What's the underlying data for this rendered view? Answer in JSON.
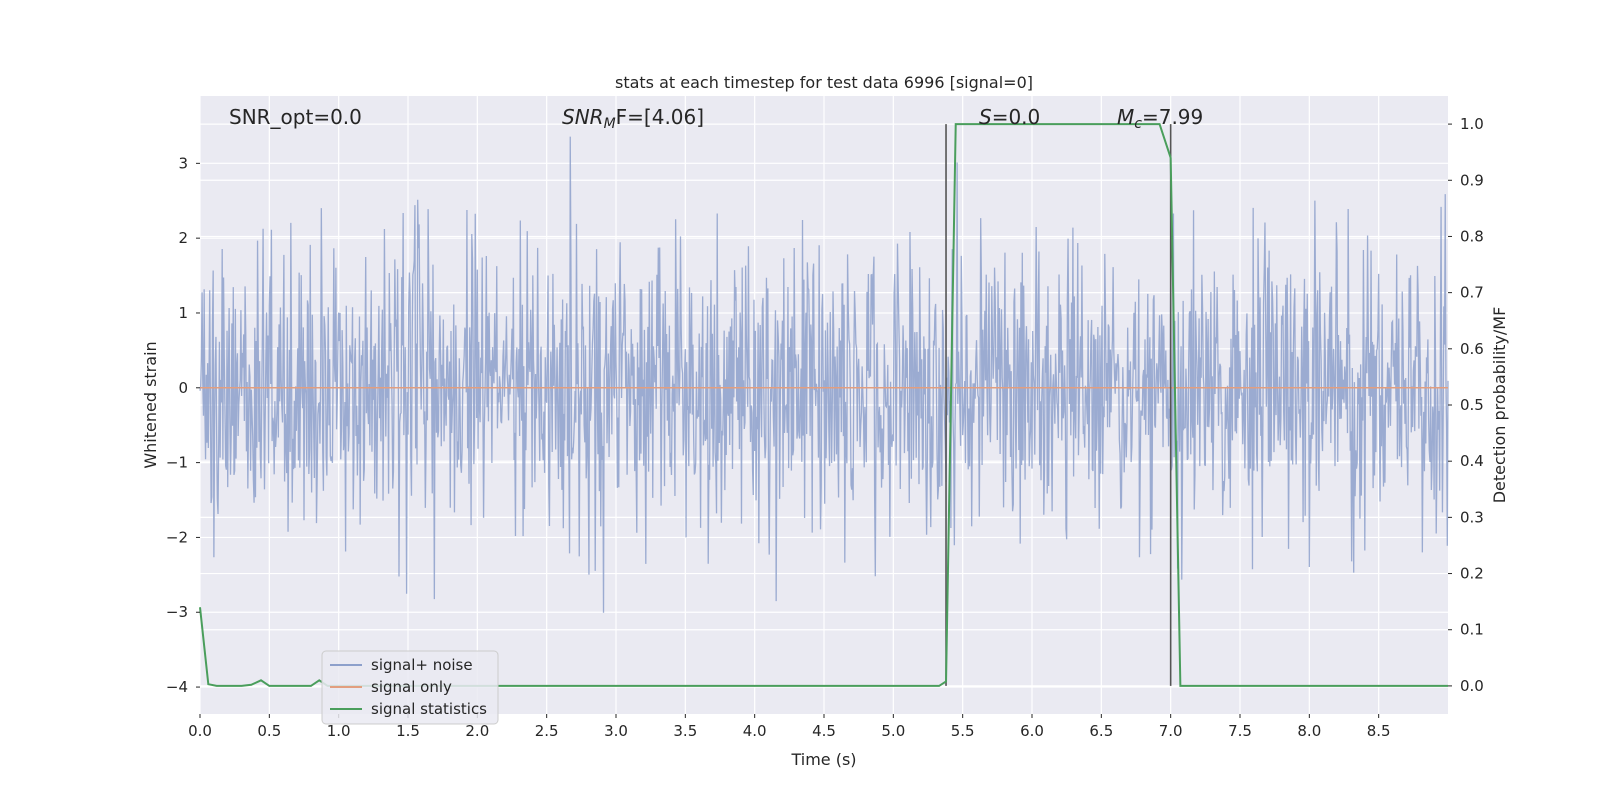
{
  "chart_data": {
    "type": "line",
    "title": "stats at each timestep for test data 6996 [signal=0]",
    "xlabel": "Time (s)",
    "ylabel_left": "Whitened strain",
    "ylabel_right": "Detection probability/MF",
    "xlim": [
      0.0,
      9.0
    ],
    "ylim_left": [
      -4.36,
      3.9
    ],
    "ylim_right": [
      -0.05,
      1.05
    ],
    "x_ticks": [
      0.0,
      0.5,
      1.0,
      1.5,
      2.0,
      2.5,
      3.0,
      3.5,
      4.0,
      4.5,
      5.0,
      5.5,
      6.0,
      6.5,
      7.0,
      7.5,
      8.0,
      8.5
    ],
    "x_tick_labels": [
      "0.0",
      "0.5",
      "1.0",
      "1.5",
      "2.0",
      "2.5",
      "3.0",
      "3.5",
      "4.0",
      "4.5",
      "5.0",
      "5.5",
      "6.0",
      "6.5",
      "7.0",
      "7.5",
      "8.0",
      "8.5"
    ],
    "y_left_ticks": [
      3,
      2,
      1,
      0,
      -1,
      -2,
      -3,
      -4
    ],
    "y_left_tick_labels": [
      "3",
      "2",
      "1",
      "0",
      "−1",
      "−2",
      "−3",
      "−4"
    ],
    "y_right_ticks": [
      1.0,
      0.9,
      0.8,
      0.7,
      0.6,
      0.5,
      0.4,
      0.3,
      0.2,
      0.1,
      0.0
    ],
    "y_right_tick_labels": [
      "1.0",
      "0.9",
      "0.8",
      "0.7",
      "0.6",
      "0.5",
      "0.4",
      "0.3",
      "0.2",
      "0.1",
      "0.0"
    ],
    "grid": true,
    "legend_position": "lower-left",
    "annotations": {
      "snr_opt": "SNR_opt=0.0",
      "snr_mf_base": "SNR",
      "snr_mf_sub": "M",
      "snr_mf_rest": "F=[4.06]",
      "s_italic": "S",
      "s_rest": "=0.0",
      "mc_base": "M",
      "mc_sub": "c",
      "mc_rest": "=7.99"
    },
    "vertical_markers": [
      5.38,
      7.0
    ],
    "series": [
      {
        "name": "signal+ noise",
        "color": "#8da0cb",
        "axis": "left",
        "description_values": {
          "samples_per_second": 200,
          "std": 0.95,
          "max_abs": 3.6
        }
      },
      {
        "name": "signal only",
        "color": "#e29e7f",
        "axis": "left",
        "x": [
          0.0,
          9.0
        ],
        "y": [
          0.0,
          0.0
        ]
      },
      {
        "name": "signal statistics",
        "color": "#4a9e5c",
        "axis": "right",
        "x": [
          0.0,
          0.06,
          0.12,
          0.2,
          0.3,
          0.37,
          0.44,
          0.5,
          0.6,
          0.7,
          0.8,
          0.86,
          0.92,
          1.0,
          1.5,
          2.0,
          3.0,
          4.0,
          5.0,
          5.33,
          5.38,
          5.45,
          6.0,
          6.5,
          6.92,
          7.0,
          7.07,
          7.5,
          8.0,
          9.0
        ],
        "y": [
          0.14,
          0.003,
          0.0,
          0.0,
          0.0,
          0.002,
          0.01,
          0.0,
          0.0,
          0.0,
          0.0,
          0.01,
          0.0,
          0.0,
          0.0,
          0.0,
          0.0,
          0.0,
          0.0,
          0.0,
          0.008,
          1.0,
          1.0,
          1.0,
          1.0,
          0.94,
          0.0,
          0.0,
          0.0,
          0.0
        ]
      }
    ]
  }
}
